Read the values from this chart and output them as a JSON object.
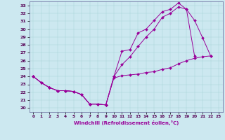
{
  "xlabel": "Windchill (Refroidissement éolien,°C)",
  "xlim": [
    -0.5,
    23.5
  ],
  "ylim": [
    19.5,
    33.5
  ],
  "bg_color": "#cce8f0",
  "line_color": "#990099",
  "line1_x": [
    0,
    1,
    2,
    3,
    4,
    5,
    6,
    7,
    8,
    9,
    10,
    11,
    12,
    13,
    14,
    15,
    16,
    17,
    18,
    19,
    20,
    21,
    22
  ],
  "line1_y": [
    24.0,
    23.2,
    22.6,
    22.2,
    22.2,
    22.1,
    21.7,
    20.5,
    20.5,
    20.4,
    24.0,
    27.2,
    27.4,
    29.5,
    30.0,
    31.1,
    32.2,
    32.5,
    33.3,
    32.5,
    31.1,
    28.9,
    26.6
  ],
  "line2_x": [
    0,
    1,
    2,
    3,
    4,
    5,
    6,
    7,
    8,
    9,
    10,
    11,
    12,
    13,
    14,
    15,
    16,
    17,
    18,
    19,
    20,
    21,
    22
  ],
  "line2_y": [
    24.0,
    23.2,
    22.6,
    22.2,
    22.2,
    22.1,
    21.7,
    20.5,
    20.5,
    20.4,
    23.8,
    24.1,
    24.2,
    24.3,
    24.5,
    24.6,
    24.9,
    25.1,
    25.6,
    26.0,
    26.3,
    26.5,
    26.6
  ],
  "line3_x": [
    0,
    1,
    2,
    3,
    4,
    5,
    6,
    7,
    8,
    9,
    10,
    11,
    12,
    13,
    14,
    15,
    16,
    17,
    18,
    19,
    20
  ],
  "line3_y": [
    24.0,
    23.2,
    22.6,
    22.2,
    22.2,
    22.1,
    21.7,
    20.5,
    20.5,
    20.4,
    24.0,
    25.5,
    26.5,
    27.8,
    29.0,
    30.0,
    31.5,
    32.0,
    32.8,
    32.5,
    26.6
  ],
  "marker": "D",
  "marker_size": 2.0,
  "line_width": 0.7
}
